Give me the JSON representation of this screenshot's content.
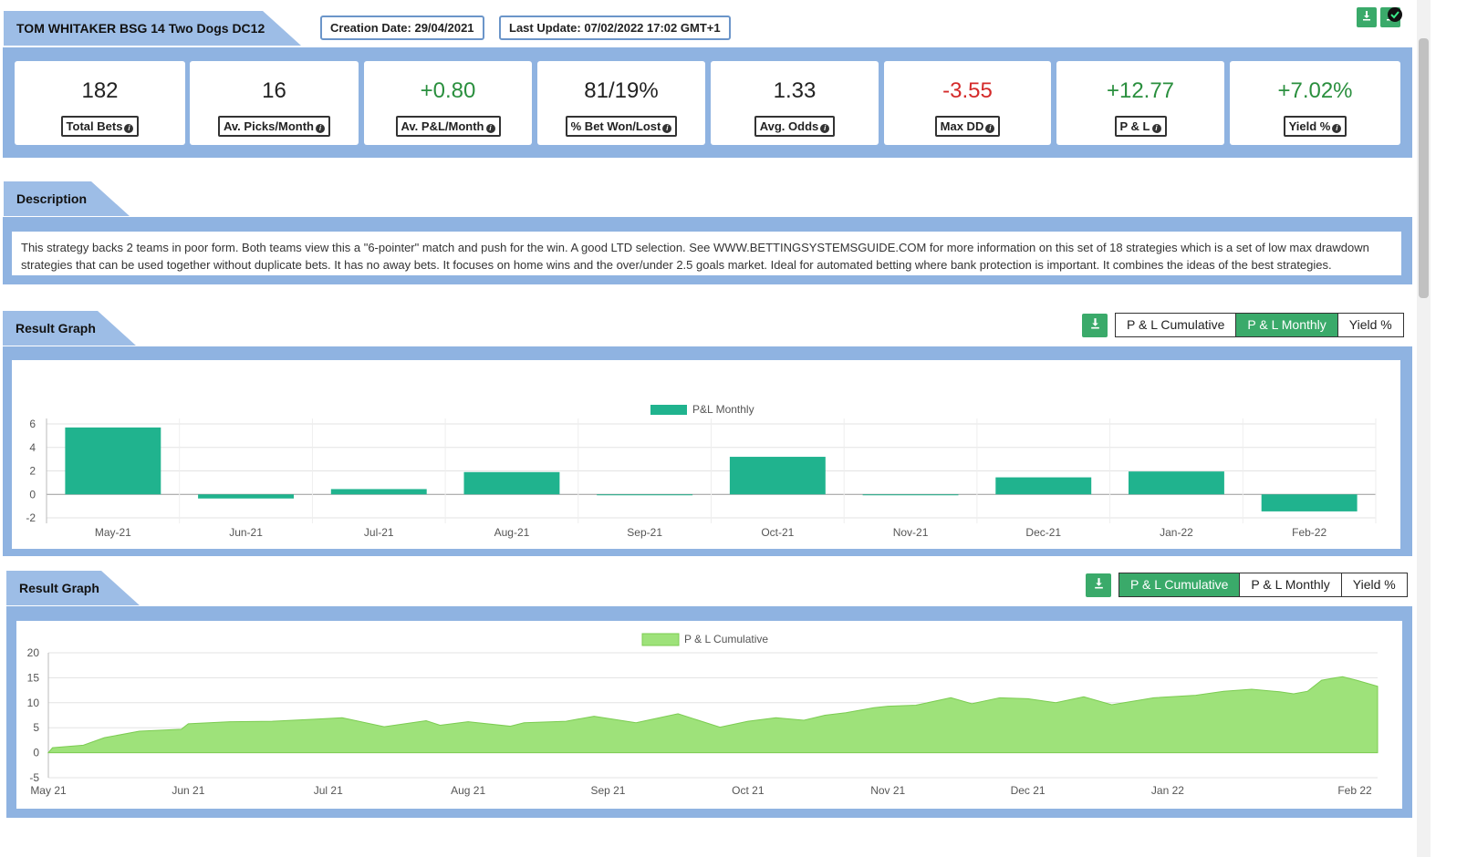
{
  "header": {
    "title": "TOM WHITAKER BSG 14 Two Dogs DC12",
    "creation_date": "Creation Date: 29/04/2021",
    "last_update": "Last Update: 07/02/2022 17:02 GMT+1"
  },
  "stats": [
    {
      "value": "182",
      "label": "Total Bets",
      "tone": "neutral"
    },
    {
      "value": "16",
      "label": "Av. Picks/Month",
      "tone": "neutral"
    },
    {
      "value": "+0.80",
      "label": "Av. P&L/Month",
      "tone": "pos"
    },
    {
      "value": "81/19%",
      "label": "% Bet Won/Lost",
      "tone": "neutral"
    },
    {
      "value": "1.33",
      "label": "Avg. Odds",
      "tone": "neutral"
    },
    {
      "value": "-3.55",
      "label": "Max DD",
      "tone": "neg"
    },
    {
      "value": "+12.77",
      "label": "P & L",
      "tone": "pos"
    },
    {
      "value": "+7.02%",
      "label": "Yield %",
      "tone": "pos"
    }
  ],
  "description": {
    "heading": "Description",
    "text": "This strategy backs 2 teams in poor form. Both teams view this a \"6-pointer\" match and push for the win. A good LTD selection. See WWW.BETTINGSYSTEMSGUIDE.COM for more information on this set of 18 strategies which is a set of low max drawdown strategies that can be used together without duplicate bets. It has no away bets. It focuses on home wins and the over/under 2.5 goals market. Ideal for automated betting where bank protection is important. It combines the ideas of the best strategies."
  },
  "graph1": {
    "heading": "Result Graph",
    "toggles": [
      "P & L Cumulative",
      "P & L Monthly",
      "Yield %"
    ],
    "active": 1
  },
  "graph2": {
    "heading": "Result Graph",
    "toggles": [
      "P & L Cumulative",
      "P & L Monthly",
      "Yield %"
    ],
    "active": 0
  },
  "colors": {
    "bar": "#20b38e",
    "area_fill": "#9ee27a",
    "area_line": "#7ccc52",
    "panel": "#8fb3e1",
    "accent": "#3aaa6a"
  },
  "icons": {
    "download": "download-icon",
    "info": "info-icon",
    "check": "check-icon"
  },
  "chart_data": [
    {
      "type": "bar",
      "legend": "P&L Monthly",
      "categories": [
        "May-21",
        "Jun-21",
        "Jul-21",
        "Aug-21",
        "Sep-21",
        "Oct-21",
        "Nov-21",
        "Dec-21",
        "Jan-22",
        "Feb-22"
      ],
      "values": [
        5.7,
        -0.35,
        0.45,
        1.9,
        0,
        3.2,
        -0.05,
        1.45,
        1.95,
        -1.45
      ],
      "yticks": [
        6,
        4,
        2,
        0,
        -2
      ],
      "ylim": [
        -2,
        6
      ],
      "grid": true
    },
    {
      "type": "area",
      "legend": "P & L Cumulative",
      "xticks": [
        "May 21",
        "Jun 21",
        "Jul 21",
        "Aug 21",
        "Sep 21",
        "Oct 21",
        "Nov 21",
        "Dec 21",
        "Jan 22",
        "Feb 22"
      ],
      "yticks": [
        20,
        15,
        10,
        5,
        0,
        -5
      ],
      "ylim": [
        -5,
        20
      ],
      "grid": true,
      "x": [
        0,
        0.03,
        0.25,
        0.4,
        0.65,
        0.95,
        1.0,
        1.3,
        1.6,
        1.9,
        2.1,
        2.4,
        2.7,
        2.8,
        3.0,
        3.3,
        3.4,
        3.7,
        3.9,
        4.2,
        4.5,
        4.8,
        5.0,
        5.2,
        5.4,
        5.55,
        5.7,
        5.9,
        6.0,
        6.2,
        6.45,
        6.6,
        6.8,
        7.0,
        7.2,
        7.4,
        7.6,
        7.9,
        8.2,
        8.4,
        8.6,
        8.8,
        8.9,
        9.0,
        9.1,
        9.2,
        9.25,
        9.35,
        9.5
      ],
      "y": [
        0,
        1,
        1.5,
        3,
        4.3,
        4.7,
        5.8,
        6.2,
        6.3,
        6.7,
        7,
        5.2,
        6.4,
        5.5,
        6.2,
        5.3,
        6,
        6.3,
        7.3,
        6,
        7.8,
        5.1,
        6.3,
        7,
        6.5,
        7.5,
        8,
        9,
        9.3,
        9.5,
        11,
        9.8,
        11,
        10.8,
        10,
        11.2,
        9.6,
        11,
        11.5,
        12.3,
        12.7,
        12.2,
        11.8,
        12.3,
        14.5,
        15,
        15.2,
        14.5,
        13.3
      ]
    }
  ]
}
